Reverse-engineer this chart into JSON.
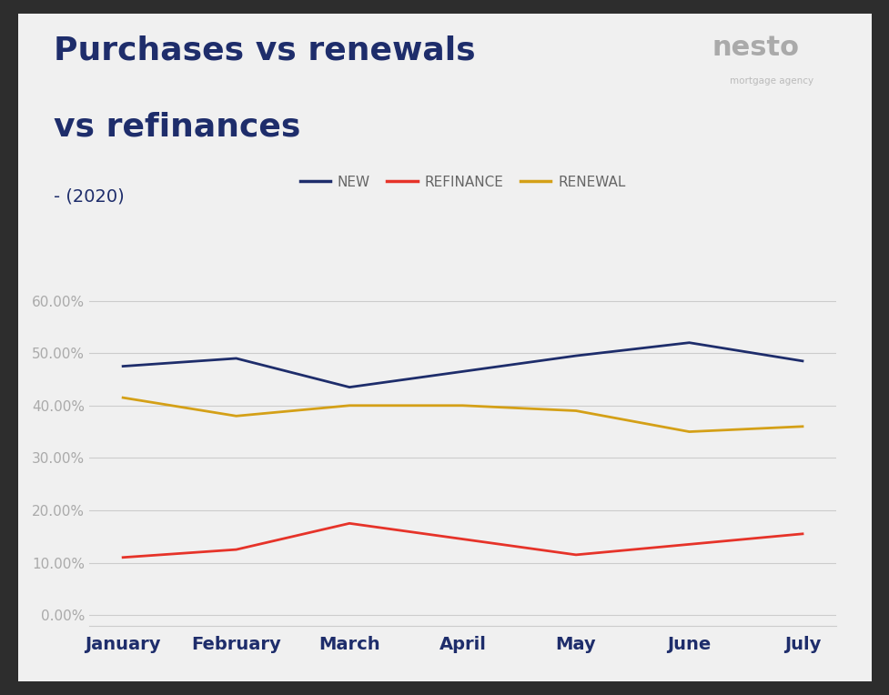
{
  "title_line1": "Purchases vs renewals",
  "title_line2": "vs refinances",
  "subtitle": "- (2020)",
  "months": [
    "January",
    "February",
    "March",
    "April",
    "May",
    "June",
    "July"
  ],
  "new_values": [
    47.5,
    49.0,
    43.5,
    46.5,
    49.5,
    52.0,
    48.5
  ],
  "refinance_values": [
    11.0,
    12.5,
    17.5,
    14.5,
    11.5,
    13.5,
    15.5
  ],
  "renewal_values": [
    41.5,
    38.0,
    40.0,
    40.0,
    39.0,
    35.0,
    36.0
  ],
  "new_color": "#1e2d6b",
  "refinance_color": "#e63329",
  "renewal_color": "#d4a017",
  "outer_background": "#2d2d2d",
  "card_background": "#f0f0f0",
  "yticks": [
    0.0,
    10.0,
    20.0,
    30.0,
    40.0,
    50.0,
    60.0
  ],
  "ylim": [
    -2,
    67
  ],
  "title_color": "#1e2d6b",
  "subtitle_color": "#1e2d6b",
  "axis_color": "#cccccc",
  "tick_label_color": "#aaaaaa",
  "xtick_label_color": "#1e2d6b",
  "legend_label_color": "#666666",
  "line_width": 2.0,
  "title_fontsize": 26,
  "subtitle_fontsize": 14,
  "xtick_fontsize": 14,
  "ytick_fontsize": 11,
  "legend_fontsize": 11
}
